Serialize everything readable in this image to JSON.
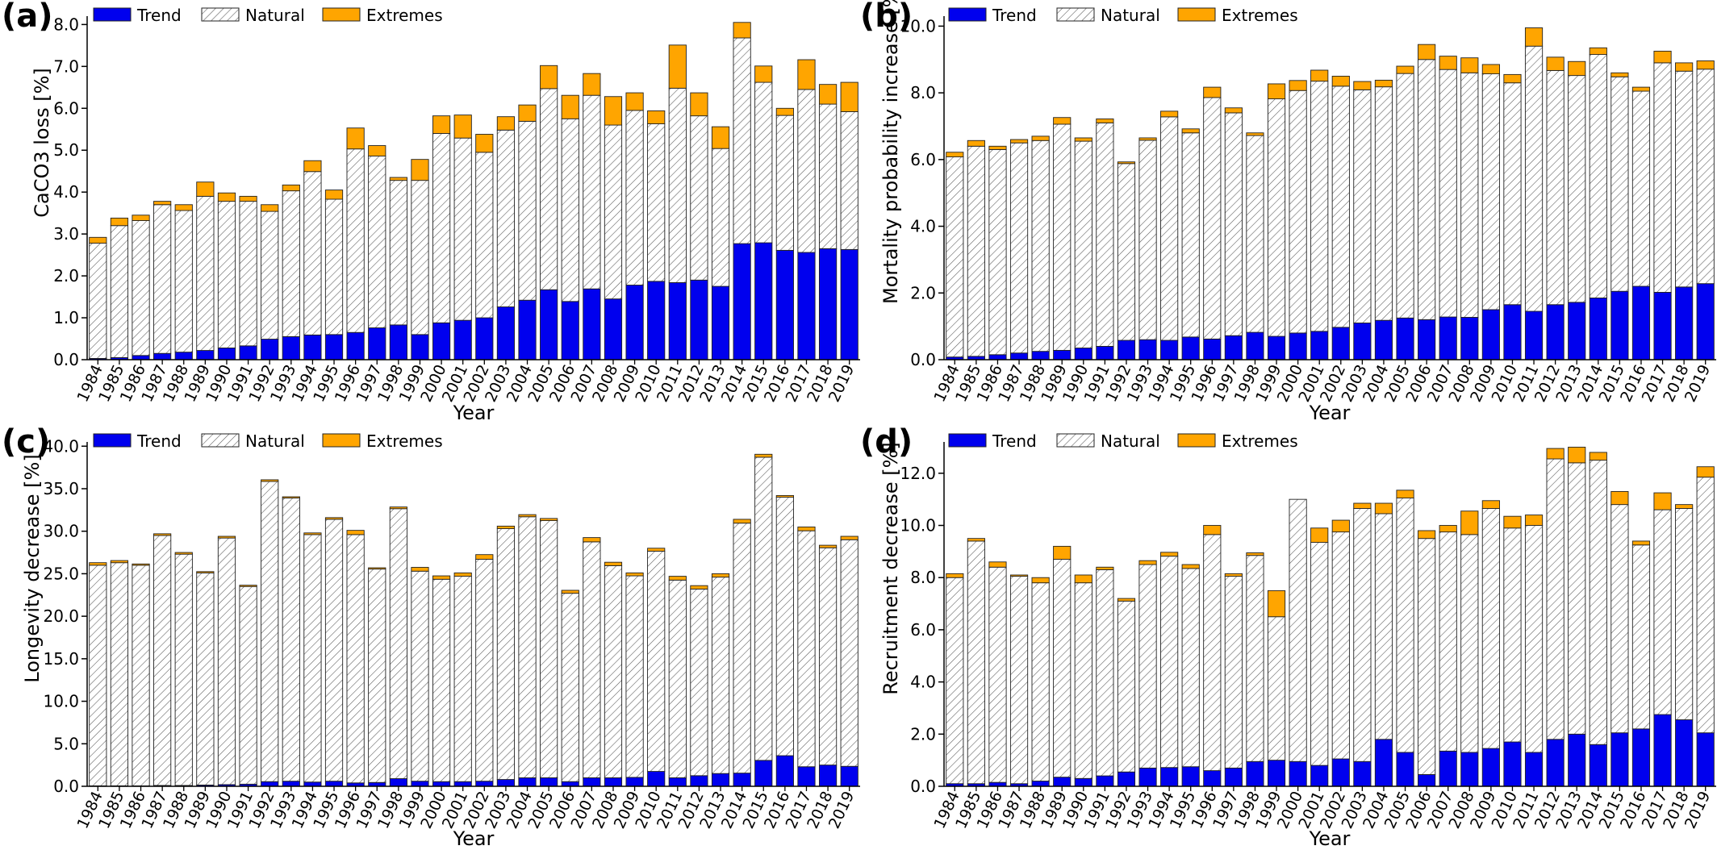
{
  "years": [
    "1984",
    "1985",
    "1986",
    "1987",
    "1988",
    "1989",
    "1990",
    "1991",
    "1992",
    "1993",
    "1994",
    "1995",
    "1996",
    "1997",
    "1998",
    "1999",
    "2000",
    "2001",
    "2002",
    "2003",
    "2004",
    "2005",
    "2006",
    "2007",
    "2008",
    "2009",
    "2010",
    "2011",
    "2012",
    "2013",
    "2014",
    "2015",
    "2016",
    "2017",
    "2018",
    "2019"
  ],
  "legend": {
    "trend": "Trend",
    "natural": "Natural",
    "extremes": "Extremes"
  },
  "colors": {
    "trend": "#0000ee",
    "extremes": "#ffa500",
    "edge": "#222222"
  },
  "xlabel": "Year",
  "chart_data": [
    {
      "panel_label": "(a)",
      "type": "bar",
      "stacked": true,
      "ylabel": "CaCO3 loss [%]",
      "ylim": [
        0,
        8.2
      ],
      "yticks": [
        "0.0",
        "1.0",
        "2.0",
        "3.0",
        "4.0",
        "5.0",
        "6.0",
        "7.0",
        "8.0"
      ],
      "ytick_values": [
        0,
        1,
        2,
        3,
        4,
        5,
        6,
        7,
        8
      ],
      "legend_position": "top-left",
      "series": [
        {
          "name": "Trend",
          "values": [
            0.03,
            0.05,
            0.1,
            0.15,
            0.18,
            0.22,
            0.28,
            0.33,
            0.49,
            0.55,
            0.59,
            0.6,
            0.65,
            0.76,
            0.83,
            0.6,
            0.88,
            0.94,
            1.0,
            1.26,
            1.42,
            1.67,
            1.39,
            1.69,
            1.45,
            1.78,
            1.87,
            1.84,
            1.9,
            1.75,
            2.77,
            2.79,
            2.61,
            2.56,
            2.65,
            2.63
          ]
        },
        {
          "name": "Natural",
          "values": [
            2.75,
            3.15,
            3.22,
            3.55,
            3.38,
            3.68,
            3.5,
            3.45,
            3.05,
            3.48,
            3.9,
            3.23,
            4.38,
            4.1,
            3.45,
            3.68,
            4.52,
            4.35,
            3.95,
            4.22,
            4.27,
            4.8,
            4.36,
            4.62,
            4.15,
            4.17,
            3.76,
            4.64,
            3.92,
            3.29,
            4.91,
            3.83,
            3.22,
            3.89,
            3.45,
            3.29
          ]
        },
        {
          "name": "Extremes",
          "values": [
            0.14,
            0.18,
            0.13,
            0.08,
            0.14,
            0.34,
            0.2,
            0.12,
            0.16,
            0.14,
            0.26,
            0.22,
            0.5,
            0.25,
            0.07,
            0.5,
            0.42,
            0.55,
            0.43,
            0.32,
            0.39,
            0.55,
            0.56,
            0.52,
            0.68,
            0.42,
            0.31,
            1.03,
            0.55,
            0.52,
            0.37,
            0.39,
            0.17,
            0.71,
            0.47,
            0.7
          ]
        }
      ]
    },
    {
      "panel_label": "(b)",
      "type": "bar",
      "stacked": true,
      "ylabel": "Mortality probability increase [%]",
      "ylim": [
        0,
        10.3
      ],
      "yticks": [
        "0.0",
        "2.0",
        "4.0",
        "6.0",
        "8.0",
        "10.0"
      ],
      "ytick_values": [
        0,
        2,
        4,
        6,
        8,
        10
      ],
      "legend_position": "top-left",
      "series": [
        {
          "name": "Trend",
          "values": [
            0.08,
            0.1,
            0.15,
            0.2,
            0.25,
            0.28,
            0.35,
            0.4,
            0.58,
            0.6,
            0.58,
            0.68,
            0.62,
            0.72,
            0.82,
            0.7,
            0.8,
            0.85,
            0.97,
            1.1,
            1.18,
            1.25,
            1.2,
            1.28,
            1.27,
            1.5,
            1.65,
            1.45,
            1.65,
            1.72,
            1.85,
            2.05,
            2.2,
            2.02,
            2.18,
            2.28
          ]
        },
        {
          "name": "Natural",
          "values": [
            6.0,
            6.3,
            6.15,
            6.3,
            6.32,
            6.78,
            6.2,
            6.7,
            5.3,
            5.98,
            6.7,
            6.12,
            7.24,
            6.68,
            5.9,
            7.12,
            7.27,
            7.5,
            7.23,
            6.99,
            7.0,
            7.33,
            7.8,
            7.42,
            7.33,
            7.07,
            6.65,
            7.95,
            7.02,
            6.8,
            7.3,
            6.43,
            5.85,
            6.88,
            6.47,
            6.43
          ]
        },
        {
          "name": "Extremes",
          "values": [
            0.14,
            0.17,
            0.1,
            0.1,
            0.13,
            0.2,
            0.1,
            0.12,
            0.05,
            0.07,
            0.17,
            0.12,
            0.31,
            0.15,
            0.08,
            0.45,
            0.3,
            0.33,
            0.3,
            0.25,
            0.2,
            0.22,
            0.45,
            0.4,
            0.45,
            0.28,
            0.25,
            0.55,
            0.4,
            0.42,
            0.2,
            0.12,
            0.12,
            0.35,
            0.25,
            0.25
          ]
        }
      ]
    },
    {
      "panel_label": "(c)",
      "type": "bar",
      "stacked": true,
      "ylabel": "Longevity decrease [%]",
      "ylim": [
        0,
        40.5
      ],
      "yticks": [
        "0.0",
        "5.0",
        "10.0",
        "15.0",
        "20.0",
        "25.0",
        "30.0",
        "35.0",
        "40.0"
      ],
      "ytick_values": [
        0,
        5,
        10,
        15,
        20,
        25,
        30,
        35,
        40
      ],
      "legend_position": "top-left",
      "series": [
        {
          "name": "Trend",
          "values": [
            0.05,
            0.05,
            0.05,
            0.1,
            0.1,
            0.15,
            0.2,
            0.25,
            0.55,
            0.6,
            0.5,
            0.6,
            0.4,
            0.45,
            0.9,
            0.6,
            0.55,
            0.55,
            0.6,
            0.8,
            1.0,
            1.0,
            0.55,
            1.0,
            1.0,
            1.05,
            1.75,
            1.0,
            1.25,
            1.5,
            1.55,
            3.05,
            3.6,
            2.3,
            2.5,
            2.35
          ]
        },
        {
          "name": "Natural",
          "values": [
            25.95,
            26.25,
            25.95,
            29.4,
            27.2,
            24.95,
            29.0,
            23.25,
            35.3,
            33.3,
            29.1,
            30.8,
            29.2,
            25.1,
            31.75,
            24.7,
            23.8,
            24.15,
            26.1,
            29.5,
            30.7,
            30.25,
            22.15,
            27.75,
            24.95,
            23.7,
            25.9,
            23.25,
            21.95,
            23.1,
            29.4,
            35.65,
            30.4,
            27.75,
            25.55,
            26.65
          ]
        },
        {
          "name": "Extremes",
          "values": [
            0.3,
            0.25,
            0.15,
            0.2,
            0.2,
            0.15,
            0.2,
            0.15,
            0.2,
            0.15,
            0.2,
            0.2,
            0.5,
            0.15,
            0.2,
            0.45,
            0.4,
            0.4,
            0.55,
            0.3,
            0.25,
            0.25,
            0.35,
            0.5,
            0.4,
            0.35,
            0.35,
            0.45,
            0.4,
            0.4,
            0.45,
            0.35,
            0.2,
            0.45,
            0.3,
            0.4
          ]
        }
      ]
    },
    {
      "panel_label": "(d)",
      "type": "bar",
      "stacked": true,
      "ylabel": "Recruitment decrease [%]",
      "ylim": [
        0,
        13.2
      ],
      "yticks": [
        "0.0",
        "2.0",
        "4.0",
        "6.0",
        "8.0",
        "10.0",
        "12.0"
      ],
      "ytick_values": [
        0,
        2,
        4,
        6,
        8,
        10,
        12
      ],
      "legend_position": "top-left",
      "series": [
        {
          "name": "Trend",
          "values": [
            0.1,
            0.1,
            0.15,
            0.1,
            0.2,
            0.35,
            0.3,
            0.4,
            0.55,
            0.7,
            0.72,
            0.75,
            0.6,
            0.7,
            0.95,
            1.0,
            0.95,
            0.8,
            1.05,
            0.95,
            1.8,
            1.3,
            0.45,
            1.35,
            1.3,
            1.45,
            1.7,
            1.3,
            1.8,
            2.0,
            1.6,
            2.05,
            2.2,
            2.75,
            2.55,
            2.05
          ]
        },
        {
          "name": "Natural",
          "values": [
            7.9,
            9.3,
            8.25,
            7.95,
            7.6,
            8.35,
            7.5,
            7.9,
            6.55,
            7.8,
            8.1,
            7.6,
            9.05,
            7.35,
            7.9,
            5.5,
            10.05,
            8.55,
            8.7,
            9.7,
            8.65,
            9.75,
            9.05,
            8.4,
            8.35,
            9.2,
            8.2,
            8.7,
            10.75,
            10.4,
            10.9,
            8.75,
            7.05,
            7.85,
            8.1,
            9.8
          ]
        },
        {
          "name": "Extremes",
          "values": [
            0.15,
            0.1,
            0.2,
            0.05,
            0.2,
            0.5,
            0.3,
            0.1,
            0.1,
            0.15,
            0.15,
            0.15,
            0.35,
            0.1,
            0.1,
            1.0,
            0.0,
            0.55,
            0.45,
            0.2,
            0.4,
            0.3,
            0.3,
            0.25,
            0.9,
            0.3,
            0.45,
            0.4,
            0.4,
            0.6,
            0.3,
            0.5,
            0.15,
            0.65,
            0.15,
            0.4
          ]
        }
      ]
    }
  ]
}
